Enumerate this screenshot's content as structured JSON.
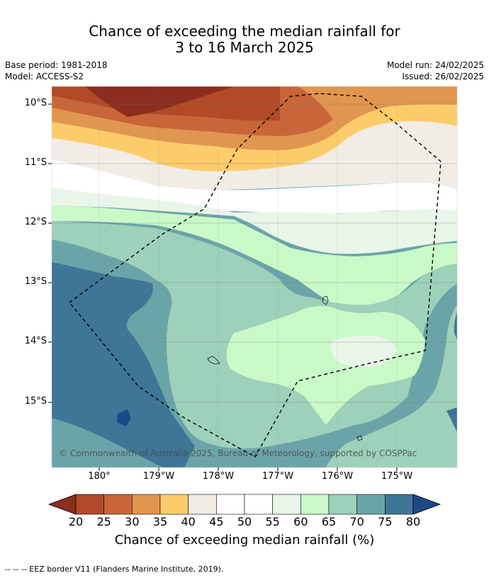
{
  "title_line1": "Chance of exceeding the median rainfall for",
  "title_line2": "3 to 16 March 2025",
  "base_period": "Base period: 1981-2018",
  "model": "Model: ACCESS-S2",
  "model_run": "Model run: 24/02/2025",
  "issued": "Issued: 26/02/2025",
  "attribution": "© Commonwealth of Australia 2025, Bureau of Meteorology, supported by COSPPac",
  "lat_labels": [
    "10°S",
    "11°S",
    "12°S",
    "13°S",
    "14°S",
    "15°S"
  ],
  "lon_labels": [
    "180°",
    "179°W",
    "178°W",
    "177°W",
    "176°W",
    "175°W"
  ],
  "colorbar": {
    "ticks": [
      "20",
      "25",
      "30",
      "35",
      "40",
      "45",
      "50",
      "55",
      "60",
      "65",
      "70",
      "75",
      "80"
    ],
    "colors": [
      "#8c2d1e",
      "#b24a27",
      "#c8663a",
      "#e0964e",
      "#fdcc6a",
      "#f1ece6",
      "#ffffff",
      "#ffffff",
      "#eaf5e9",
      "#caf9c8",
      "#9dd1b9",
      "#6ba4a8",
      "#3f7596",
      "#1b4a86"
    ],
    "title": "Chance of exceeding median rainfall (%)"
  },
  "footnote": "--  --  -- EEZ border V11 (Flanders Marine Institute, 2019)."
}
